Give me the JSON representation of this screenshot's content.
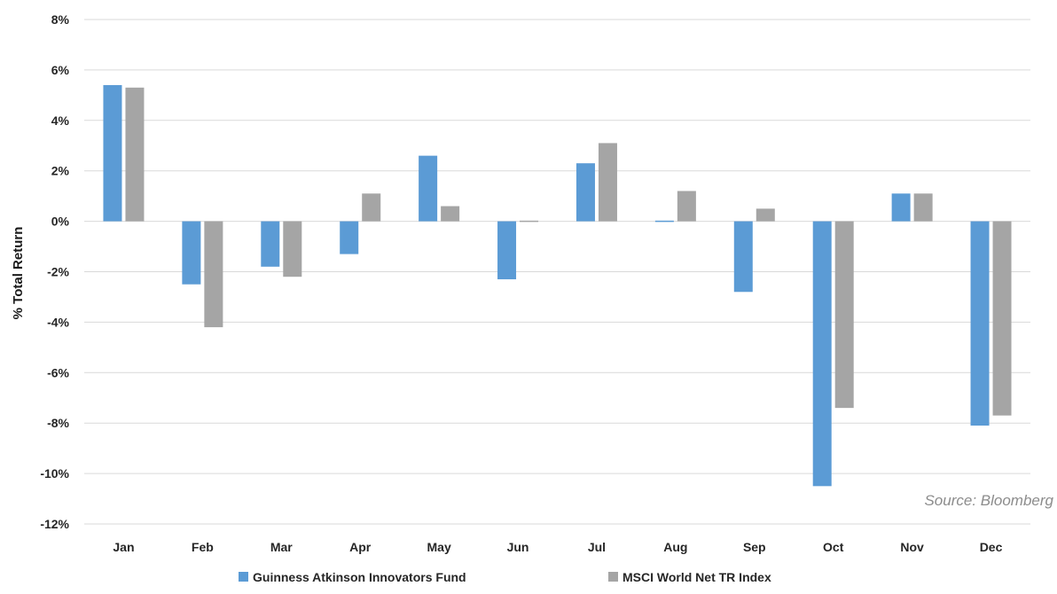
{
  "chart_data": {
    "type": "bar",
    "title": "",
    "xlabel": "",
    "ylabel": "% Total Return",
    "ylim": [
      -12,
      8
    ],
    "y_tick_step": 2,
    "y_tick_format": "percent",
    "grid": true,
    "legend_position": "bottom",
    "categories": [
      "Jan",
      "Feb",
      "Mar",
      "Apr",
      "May",
      "Jun",
      "Jul",
      "Aug",
      "Sep",
      "Oct",
      "Nov",
      "Dec"
    ],
    "series": [
      {
        "name": "Guinness Atkinson Innovators Fund",
        "color": "#5b9bd5",
        "values": [
          5.4,
          -2.5,
          -1.8,
          -1.3,
          2.6,
          -2.3,
          2.3,
          0.05,
          -2.8,
          -10.5,
          1.1,
          -8.1
        ]
      },
      {
        "name": "MSCI World Net TR Index",
        "color": "#a5a5a5",
        "values": [
          5.3,
          -4.2,
          -2.2,
          1.1,
          0.6,
          -0.05,
          3.1,
          1.2,
          0.5,
          -7.4,
          1.1,
          -7.7
        ]
      }
    ],
    "annotations": [
      {
        "text": "Source: Bloomberg",
        "position": "lower-right"
      }
    ]
  }
}
